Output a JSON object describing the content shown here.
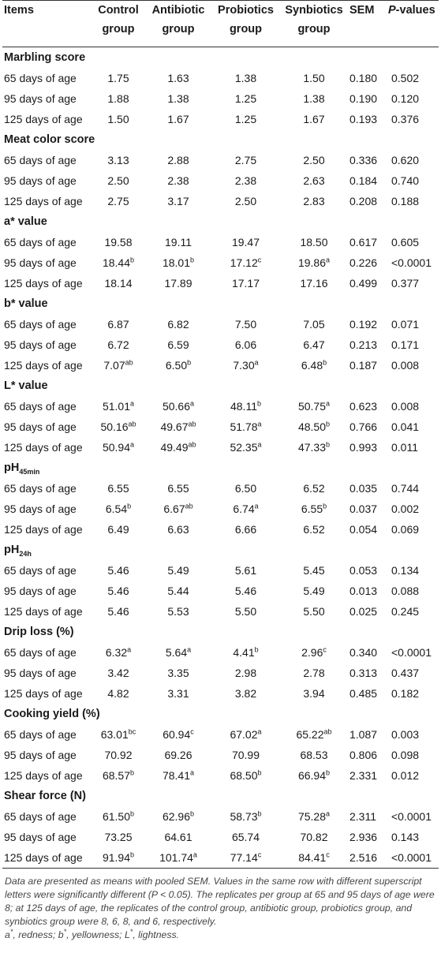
{
  "headers": {
    "items": "Items",
    "control": [
      "Control",
      "group"
    ],
    "antibiotic": [
      "Antibiotic",
      "group"
    ],
    "probiotics": [
      "Probiotics",
      "group"
    ],
    "synbiotics": [
      "Synbiotics",
      "group"
    ],
    "sem": "SEM",
    "pvalues": "P-values"
  },
  "groups": [
    {
      "title": "Marbling score",
      "rows": [
        {
          "label": "65 days of age",
          "vals": [
            [
              "1.75",
              ""
            ],
            [
              "1.63",
              ""
            ],
            [
              "1.38",
              ""
            ],
            [
              "1.50",
              ""
            ]
          ],
          "sem": "0.180",
          "p": "0.502"
        },
        {
          "label": "95 days of age",
          "vals": [
            [
              "1.88",
              ""
            ],
            [
              "1.38",
              ""
            ],
            [
              "1.25",
              ""
            ],
            [
              "1.38",
              ""
            ]
          ],
          "sem": "0.190",
          "p": "0.120"
        },
        {
          "label": "125 days of age",
          "vals": [
            [
              "1.50",
              ""
            ],
            [
              "1.67",
              ""
            ],
            [
              "1.25",
              ""
            ],
            [
              "1.67",
              ""
            ]
          ],
          "sem": "0.193",
          "p": "0.376"
        }
      ]
    },
    {
      "title": "Meat color score",
      "rows": [
        {
          "label": "65 days of age",
          "vals": [
            [
              "3.13",
              ""
            ],
            [
              "2.88",
              ""
            ],
            [
              "2.75",
              ""
            ],
            [
              "2.50",
              ""
            ]
          ],
          "sem": "0.336",
          "p": "0.620"
        },
        {
          "label": "95 days of age",
          "vals": [
            [
              "2.50",
              ""
            ],
            [
              "2.38",
              ""
            ],
            [
              "2.38",
              ""
            ],
            [
              "2.63",
              ""
            ]
          ],
          "sem": "0.184",
          "p": "0.740"
        },
        {
          "label": "125 days of age",
          "vals": [
            [
              "2.75",
              ""
            ],
            [
              "3.17",
              ""
            ],
            [
              "2.50",
              ""
            ],
            [
              "2.83",
              ""
            ]
          ],
          "sem": "0.208",
          "p": "0.188"
        }
      ]
    },
    {
      "title": "a* value",
      "rows": [
        {
          "label": "65 days of age",
          "vals": [
            [
              "19.58",
              ""
            ],
            [
              "19.11",
              ""
            ],
            [
              "19.47",
              ""
            ],
            [
              "18.50",
              ""
            ]
          ],
          "sem": "0.617",
          "p": "0.605"
        },
        {
          "label": "95 days of age",
          "vals": [
            [
              "18.44",
              "b"
            ],
            [
              "18.01",
              "b"
            ],
            [
              "17.12",
              "c"
            ],
            [
              "19.86",
              "a"
            ]
          ],
          "sem": "0.226",
          "p": "<0.0001"
        },
        {
          "label": "125 days of age",
          "vals": [
            [
              "18.14",
              ""
            ],
            [
              "17.89",
              ""
            ],
            [
              "17.17",
              ""
            ],
            [
              "17.16",
              ""
            ]
          ],
          "sem": "0.499",
          "p": "0.377"
        }
      ]
    },
    {
      "title": "b* value",
      "rows": [
        {
          "label": "65 days of age",
          "vals": [
            [
              "6.87",
              ""
            ],
            [
              "6.82",
              ""
            ],
            [
              "7.50",
              ""
            ],
            [
              "7.05",
              ""
            ]
          ],
          "sem": "0.192",
          "p": "0.071"
        },
        {
          "label": "95 days of age",
          "vals": [
            [
              "6.72",
              ""
            ],
            [
              "6.59",
              ""
            ],
            [
              "6.06",
              ""
            ],
            [
              "6.47",
              ""
            ]
          ],
          "sem": "0.213",
          "p": "0.171"
        },
        {
          "label": "125 days of age",
          "vals": [
            [
              "7.07",
              "ab"
            ],
            [
              "6.50",
              "b"
            ],
            [
              "7.30",
              "a"
            ],
            [
              "6.48",
              "b"
            ]
          ],
          "sem": "0.187",
          "p": "0.008"
        }
      ]
    },
    {
      "title": "L* value",
      "rows": [
        {
          "label": "65 days of age",
          "vals": [
            [
              "51.01",
              "a"
            ],
            [
              "50.66",
              "a"
            ],
            [
              "48.11",
              "b"
            ],
            [
              "50.75",
              "a"
            ]
          ],
          "sem": "0.623",
          "p": "0.008"
        },
        {
          "label": "95 days of age",
          "vals": [
            [
              "50.16",
              "ab"
            ],
            [
              "49.67",
              "ab"
            ],
            [
              "51.78",
              "a"
            ],
            [
              "48.50",
              "b"
            ]
          ],
          "sem": "0.766",
          "p": "0.041"
        },
        {
          "label": "125 days of age",
          "vals": [
            [
              "50.94",
              "a"
            ],
            [
              "49.49",
              "ab"
            ],
            [
              "52.35",
              "a"
            ],
            [
              "47.33",
              "b"
            ]
          ],
          "sem": "0.993",
          "p": "0.011"
        }
      ]
    },
    {
      "title": "pH",
      "title_sub": "45min",
      "rows": [
        {
          "label": "65 days of age",
          "vals": [
            [
              "6.55",
              ""
            ],
            [
              "6.55",
              ""
            ],
            [
              "6.50",
              ""
            ],
            [
              "6.52",
              ""
            ]
          ],
          "sem": "0.035",
          "p": "0.744"
        },
        {
          "label": "95 days of age",
          "vals": [
            [
              "6.54",
              "b"
            ],
            [
              "6.67",
              "ab"
            ],
            [
              "6.74",
              "a"
            ],
            [
              "6.55",
              "b"
            ]
          ],
          "sem": "0.037",
          "p": "0.002"
        },
        {
          "label": "125 days of age",
          "vals": [
            [
              "6.49",
              ""
            ],
            [
              "6.63",
              ""
            ],
            [
              "6.66",
              ""
            ],
            [
              "6.52",
              ""
            ]
          ],
          "sem": "0.054",
          "p": "0.069"
        }
      ]
    },
    {
      "title": "pH",
      "title_sub": "24h",
      "rows": [
        {
          "label": "65 days of age",
          "vals": [
            [
              "5.46",
              ""
            ],
            [
              "5.49",
              ""
            ],
            [
              "5.61",
              ""
            ],
            [
              "5.45",
              ""
            ]
          ],
          "sem": "0.053",
          "p": "0.134"
        },
        {
          "label": "95 days of age",
          "vals": [
            [
              "5.46",
              ""
            ],
            [
              "5.44",
              ""
            ],
            [
              "5.46",
              ""
            ],
            [
              "5.49",
              ""
            ]
          ],
          "sem": "0.013",
          "p": "0.088"
        },
        {
          "label": "125 days of age",
          "vals": [
            [
              "5.46",
              ""
            ],
            [
              "5.53",
              ""
            ],
            [
              "5.50",
              ""
            ],
            [
              "5.50",
              ""
            ]
          ],
          "sem": "0.025",
          "p": "0.245"
        }
      ]
    },
    {
      "title": "Drip loss (%)",
      "rows": [
        {
          "label": "65 days of age",
          "vals": [
            [
              "6.32",
              "a"
            ],
            [
              "5.64",
              "a"
            ],
            [
              "4.41",
              "b"
            ],
            [
              "2.96",
              "c"
            ]
          ],
          "sem": "0.340",
          "p": "<0.0001"
        },
        {
          "label": "95 days of age",
          "vals": [
            [
              "3.42",
              ""
            ],
            [
              "3.35",
              ""
            ],
            [
              "2.98",
              ""
            ],
            [
              "2.78",
              ""
            ]
          ],
          "sem": "0.313",
          "p": "0.437"
        },
        {
          "label": "125 days of age",
          "vals": [
            [
              "4.82",
              ""
            ],
            [
              "3.31",
              ""
            ],
            [
              "3.82",
              ""
            ],
            [
              "3.94",
              ""
            ]
          ],
          "sem": "0.485",
          "p": "0.182"
        }
      ]
    },
    {
      "title": "Cooking yield (%)",
      "rows": [
        {
          "label": "65 days of age",
          "vals": [
            [
              "63.01",
              "bc"
            ],
            [
              "60.94",
              "c"
            ],
            [
              "67.02",
              "a"
            ],
            [
              "65.22",
              "ab"
            ]
          ],
          "sem": "1.087",
          "p": "0.003"
        },
        {
          "label": "95 days of age",
          "vals": [
            [
              "70.92",
              ""
            ],
            [
              "69.26",
              ""
            ],
            [
              "70.99",
              ""
            ],
            [
              "68.53",
              ""
            ]
          ],
          "sem": "0.806",
          "p": "0.098"
        },
        {
          "label": "125 days of age",
          "vals": [
            [
              "68.57",
              "b"
            ],
            [
              "78.41",
              "a"
            ],
            [
              "68.50",
              "b"
            ],
            [
              "66.94",
              "b"
            ]
          ],
          "sem": "2.331",
          "p": "0.012"
        }
      ]
    },
    {
      "title": "Shear force (N)",
      "rows": [
        {
          "label": "65 days of age",
          "vals": [
            [
              "61.50",
              "b"
            ],
            [
              "62.96",
              "b"
            ],
            [
              "58.73",
              "b"
            ],
            [
              "75.28",
              "a"
            ]
          ],
          "sem": "2.311",
          "p": "<0.0001"
        },
        {
          "label": "95 days of age",
          "vals": [
            [
              "73.25",
              ""
            ],
            [
              "64.61",
              ""
            ],
            [
              "65.74",
              ""
            ],
            [
              "70.82",
              ""
            ]
          ],
          "sem": "2.936",
          "p": "0.143"
        },
        {
          "label": "125 days of age",
          "vals": [
            [
              "91.94",
              "b"
            ],
            [
              "101.74",
              "a"
            ],
            [
              "77.14",
              "c"
            ],
            [
              "84.41",
              "c"
            ]
          ],
          "sem": "2.516",
          "p": "<0.0001"
        }
      ]
    }
  ],
  "footnote": {
    "text1": "Data are presented as means with pooled SEM. Values in the same row with different superscript letters were significantly different (P < 0.05). The replicates per group at 65 and 95 days of age were 8; at 125 days of age, the replicates of the control group, antibiotic group, probiotics group, and synbiotics group were 8, 6, 8, and 6, respectively.",
    "a_sym": "a",
    "a_text": ", redness; ",
    "b_sym": "b",
    "b_text": ", yellowness; ",
    "l_sym": "L",
    "l_text": ", lightness.",
    "star": "*"
  }
}
